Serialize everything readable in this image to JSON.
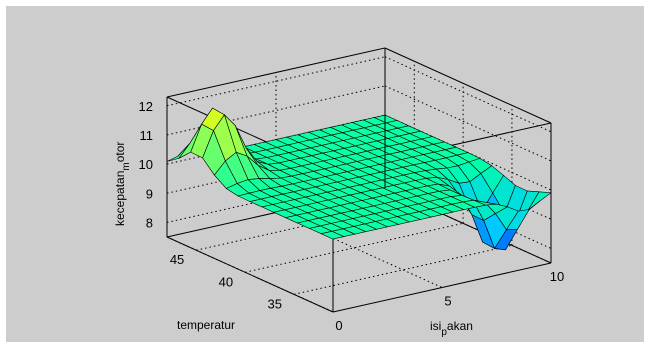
{
  "chart_data": {
    "type": "surface",
    "x_label": {
      "main": "isi",
      "sub": "p",
      "rest": "akan"
    },
    "y_label": "temperatur",
    "z_label": {
      "main": "kecepatan",
      "sub": "m",
      "rest": "otor"
    },
    "x_ticks": [
      "0",
      "5",
      "10"
    ],
    "y_ticks": [
      "35",
      "40",
      "45"
    ],
    "z_ticks": [
      "8",
      "9",
      "10",
      "11",
      "12"
    ],
    "xlim": [
      0,
      10
    ],
    "ylim": [
      31,
      48
    ],
    "zlim": [
      7.5,
      12.3
    ],
    "grid": true,
    "colormap": [
      "#0000ff",
      "#00c8ff",
      "#00ffaa",
      "#80ff60",
      "#ffff00"
    ],
    "surface": {
      "baseline": 10,
      "peak": {
        "x": 1,
        "y": 45,
        "z": 12.3
      },
      "trough": {
        "x": 8.8,
        "y": 34,
        "z": 7.5
      },
      "description_values": "flat at 10 with a peak near isi=1,temperatur=45 and a depression near isi=9,temperatur=34"
    }
  }
}
